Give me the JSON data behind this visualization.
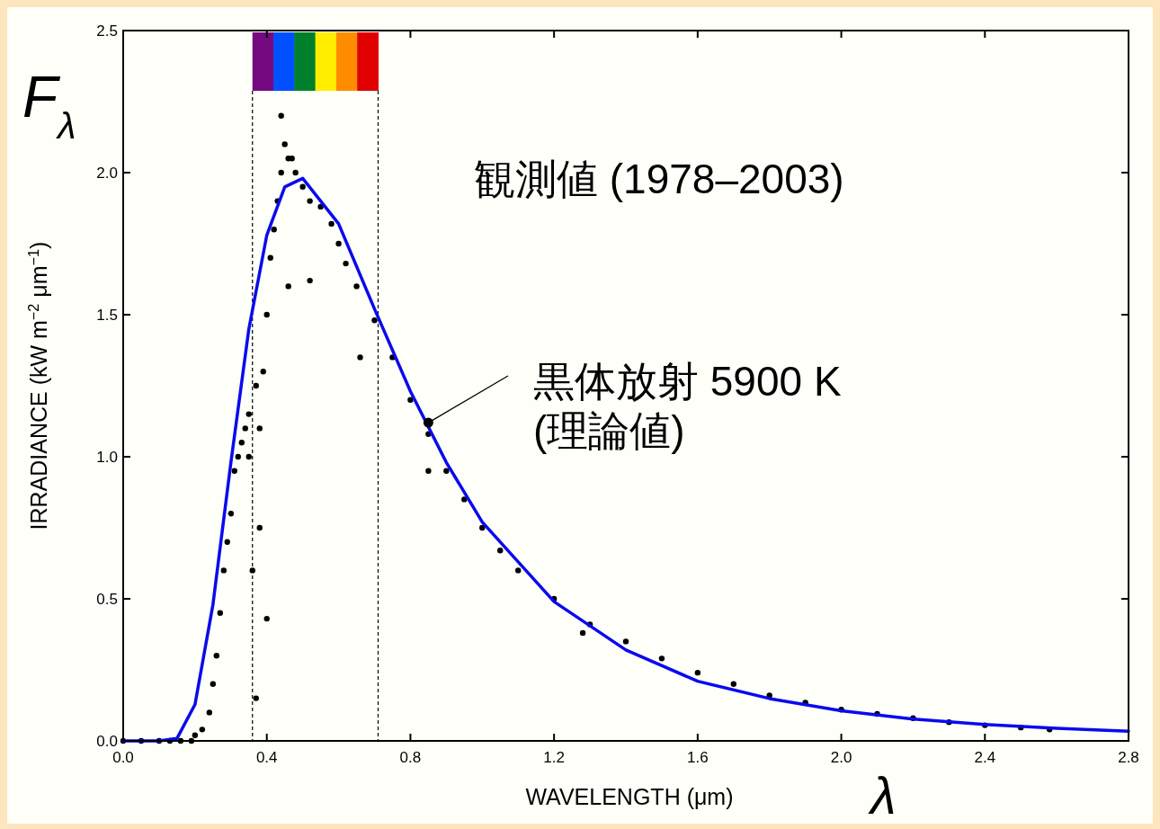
{
  "chart_data": {
    "type": "scatter",
    "xlabel": "WAVELENGTH (μm)",
    "ylabel": "IRRADIANCE (kW m$^{−2}$ μm$^{−1}$)",
    "annotations": [
      "F$_{λ}$",
      "観測値  (1978–2003)",
      {
        "text": "黒体放射 5900 K\n(理論値)",
        "x": 0.85,
        "y": 1.12
      },
      "λ"
    ],
    "xlim": [
      0,
      2.8
    ],
    "ylim": [
      0,
      2.5
    ],
    "xticks": [
      {
        "value": 0,
        "label": "0.0"
      },
      {
        "value": 0.4,
        "label": "0.4"
      },
      {
        "value": 0.8,
        "label": "0.8"
      },
      {
        "value": 1.2,
        "label": "1.2"
      },
      {
        "value": 1.6,
        "label": "1.6"
      },
      {
        "value": 2.0,
        "label": "2.0"
      },
      {
        "value": 2.4,
        "label": "2.4"
      },
      {
        "value": 2.8,
        "label": "2.8"
      }
    ],
    "yticks": [
      {
        "value": 0,
        "label": "0.0"
      },
      {
        "value": 0.5,
        "label": "0.5"
      },
      {
        "value": 1.0,
        "label": "1.0"
      },
      {
        "value": 1.5,
        "label": "1.5"
      },
      {
        "value": 2.0,
        "label": "2.0"
      },
      {
        "value": 2.5,
        "label": "2.5"
      }
    ],
    "ref_lines": [
      {
        "axis": "x",
        "value": 0.36,
        "line_style": "dashed",
        "color": "#000000"
      },
      {
        "axis": "x",
        "value": 0.71,
        "line_style": "dashed",
        "color": "#000000"
      }
    ],
    "series": [
      {
        "marker": "circle",
        "color": "#000000",
        "x": [
          0.0,
          0.05,
          0.1,
          0.13,
          0.16,
          0.19,
          0.2,
          0.22,
          0.24,
          0.25,
          0.26,
          0.27,
          0.28,
          0.29,
          0.3,
          0.31,
          0.32,
          0.33,
          0.34,
          0.35,
          0.35,
          0.36,
          0.37,
          0.37,
          0.38,
          0.38,
          0.39,
          0.4,
          0.4,
          0.41,
          0.42,
          0.43,
          0.44,
          0.44,
          0.45,
          0.46,
          0.46,
          0.47,
          0.48,
          0.5,
          0.52,
          0.52,
          0.55,
          0.58,
          0.6,
          0.62,
          0.65,
          0.66,
          0.7,
          0.75,
          0.8,
          0.85,
          0.85,
          0.9,
          0.95,
          1.0,
          1.05,
          1.1,
          1.2,
          1.28,
          1.3,
          1.4,
          1.5,
          1.6,
          1.7,
          1.8,
          1.9,
          2.0,
          2.1,
          2.2,
          2.3,
          2.4,
          2.5,
          2.58
        ],
        "values": [
          0.0,
          0.0,
          0.0,
          0.0,
          0.0,
          0.0,
          0.02,
          0.04,
          0.1,
          0.2,
          0.3,
          0.45,
          0.6,
          0.7,
          0.8,
          0.95,
          1.0,
          1.05,
          1.1,
          1.0,
          1.15,
          0.6,
          1.25,
          0.15,
          1.1,
          0.75,
          1.3,
          1.5,
          0.43,
          1.7,
          1.8,
          1.9,
          2.0,
          2.2,
          2.1,
          2.05,
          1.6,
          2.05,
          2.0,
          1.95,
          1.9,
          1.62,
          1.88,
          1.82,
          1.75,
          1.68,
          1.6,
          1.35,
          1.48,
          1.35,
          1.2,
          1.08,
          0.95,
          0.95,
          0.85,
          0.75,
          0.67,
          0.6,
          0.5,
          0.38,
          0.41,
          0.35,
          0.29,
          0.24,
          0.2,
          0.16,
          0.135,
          0.11,
          0.095,
          0.08,
          0.066,
          0.055,
          0.047,
          0.04
        ]
      },
      {
        "type": "line",
        "color": "#0a0aee",
        "x": [
          0.0,
          0.1,
          0.15,
          0.2,
          0.25,
          0.3,
          0.35,
          0.4,
          0.45,
          0.5,
          0.6,
          0.7,
          0.8,
          0.9,
          1.0,
          1.2,
          1.4,
          1.6,
          1.8,
          2.0,
          2.2,
          2.4,
          2.6,
          2.8
        ],
        "values": [
          0.0,
          0.0,
          0.009,
          0.128,
          0.48,
          0.98,
          1.45,
          1.78,
          1.95,
          1.98,
          1.82,
          1.52,
          1.23,
          0.98,
          0.77,
          0.49,
          0.32,
          0.21,
          0.149,
          0.106,
          0.077,
          0.058,
          0.044,
          0.034
        ]
      }
    ]
  }
}
